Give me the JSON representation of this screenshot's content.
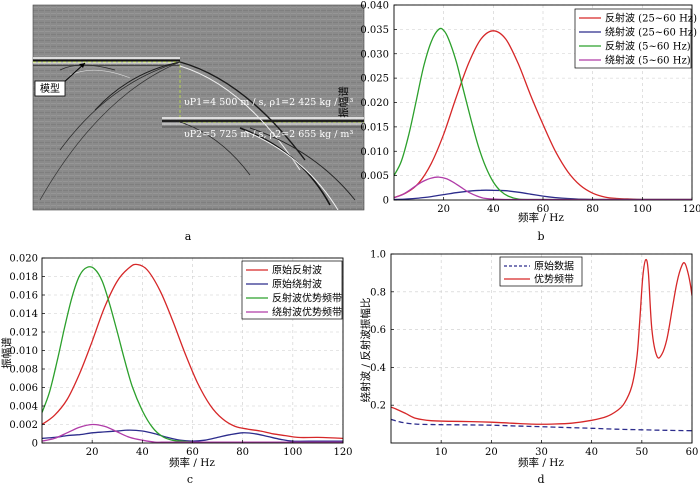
{
  "figure": {
    "panel_labels": [
      "a",
      "b",
      "c",
      "d"
    ]
  },
  "seismic": {
    "model_label": "模型",
    "upper_layer_label": "υP1=4 500 m / s, ρ1=2 425 kg / m³",
    "lower_layer_label": "υP2=5 725 m / s, ρ2=2 655 kg / m³"
  },
  "chart_data": [
    {
      "panel": "b",
      "type": "line",
      "xlabel": "频率 / Hz",
      "ylabel": "振幅谱",
      "xlim": [
        0,
        120
      ],
      "ylim": [
        0,
        0.04
      ],
      "xticks": [
        20,
        40,
        60,
        80,
        100,
        120
      ],
      "yticks": [
        0,
        0.005,
        0.01,
        0.015,
        0.02,
        0.025,
        0.03,
        0.035,
        0.04
      ],
      "ytick_labels": [
        "0",
        "0.005",
        "0.010",
        "0.015",
        "0.020",
        "0.025",
        "0.030",
        "0.035",
        "0.040"
      ],
      "grid": true,
      "legend_position": "top-right",
      "series": [
        {
          "name": "反射波 (25~60 Hz)",
          "color": "#d62728",
          "x": [
            0,
            5,
            10,
            15,
            20,
            25,
            30,
            35,
            40,
            45,
            50,
            55,
            60,
            65,
            70,
            75,
            80,
            85,
            90,
            95,
            100,
            105,
            110,
            115,
            120
          ],
          "y": [
            0.0005,
            0.0015,
            0.0035,
            0.0075,
            0.0135,
            0.021,
            0.028,
            0.033,
            0.0347,
            0.033,
            0.028,
            0.0215,
            0.0155,
            0.01,
            0.0058,
            0.003,
            0.0014,
            0.0006,
            0.0003,
            0.0002,
            0.0001,
            0.0001,
            0.0001,
            0.0001,
            0.0001
          ]
        },
        {
          "name": "绕射波 (25~60 Hz)",
          "color": "#2c2c8c",
          "x": [
            0,
            5,
            10,
            15,
            20,
            25,
            30,
            35,
            40,
            45,
            50,
            55,
            60,
            65,
            70,
            80,
            90,
            100,
            110,
            120
          ],
          "y": [
            0.0001,
            0.0002,
            0.0004,
            0.0007,
            0.0011,
            0.0015,
            0.0018,
            0.002,
            0.002,
            0.0019,
            0.0016,
            0.0012,
            0.0008,
            0.0005,
            0.0003,
            0.0001,
            0.0001,
            0.0001,
            0.0001,
            0.0001
          ]
        },
        {
          "name": "反射波 (5~60 Hz)",
          "color": "#2ca02c",
          "x": [
            0,
            3,
            6,
            9,
            12,
            15,
            18,
            20,
            22,
            25,
            28,
            31,
            34,
            37,
            40,
            43,
            46,
            50,
            55,
            60,
            70,
            80,
            100,
            120
          ],
          "y": [
            0.005,
            0.008,
            0.0135,
            0.0205,
            0.0275,
            0.0325,
            0.035,
            0.0348,
            0.033,
            0.0285,
            0.0225,
            0.0165,
            0.011,
            0.0067,
            0.0037,
            0.0018,
            0.0008,
            0.0002,
            0.0001,
            0.0001,
            0.0001,
            0.0001,
            0.0001,
            0.0001
          ]
        },
        {
          "name": "绕射波 (5~60 Hz)",
          "color": "#b03ca8",
          "x": [
            0,
            3,
            6,
            9,
            12,
            15,
            18,
            21,
            24,
            27,
            30,
            33,
            36,
            40,
            45,
            50,
            60,
            80,
            100,
            120
          ],
          "y": [
            0.0005,
            0.001,
            0.0019,
            0.003,
            0.0039,
            0.0045,
            0.0047,
            0.0044,
            0.0036,
            0.0026,
            0.0016,
            0.0009,
            0.0004,
            0.0002,
            0.0001,
            0.0001,
            0.0001,
            0.0001,
            0.0001,
            0.0001
          ]
        }
      ]
    },
    {
      "panel": "c",
      "type": "line",
      "xlabel": "频率 / Hz",
      "ylabel": "振幅谱",
      "xlim": [
        0,
        120
      ],
      "ylim": [
        0,
        0.02
      ],
      "xticks": [
        20,
        40,
        60,
        80,
        100,
        120
      ],
      "yticks": [
        0,
        0.002,
        0.004,
        0.006,
        0.008,
        0.01,
        0.012,
        0.014,
        0.016,
        0.018,
        0.02
      ],
      "ytick_labels": [
        "0",
        "0.002",
        "0.004",
        "0.006",
        "0.008",
        "0.010",
        "0.012",
        "0.014",
        "0.016",
        "0.018",
        "0.020"
      ],
      "grid": true,
      "legend_position": "top-right",
      "series": [
        {
          "name": "原始反射波",
          "color": "#d62728",
          "x": [
            0,
            5,
            10,
            15,
            20,
            25,
            30,
            35,
            38,
            42,
            47,
            52,
            57,
            62,
            67,
            72,
            77,
            82,
            87,
            92,
            97,
            102,
            110,
            120
          ],
          "y": [
            0.002,
            0.003,
            0.0047,
            0.0075,
            0.011,
            0.0147,
            0.0175,
            0.019,
            0.0193,
            0.0187,
            0.0165,
            0.0133,
            0.0097,
            0.0065,
            0.0041,
            0.0026,
            0.0018,
            0.0015,
            0.0013,
            0.001,
            0.0008,
            0.0006,
            0.0006,
            0.0005
          ]
        },
        {
          "name": "原始绕射波",
          "color": "#2c2c8c",
          "x": [
            0,
            5,
            10,
            15,
            20,
            25,
            30,
            35,
            40,
            45,
            50,
            55,
            60,
            65,
            70,
            75,
            80,
            85,
            90,
            95,
            100,
            110,
            120
          ],
          "y": [
            0.0005,
            0.0006,
            0.0008,
            0.0009,
            0.0011,
            0.0012,
            0.0013,
            0.0014,
            0.0013,
            0.001,
            0.0006,
            0.0003,
            0.0002,
            0.0003,
            0.0006,
            0.0009,
            0.0011,
            0.001,
            0.0007,
            0.0004,
            0.0002,
            0.0002,
            0.0002
          ]
        },
        {
          "name": "反射波优势频带",
          "color": "#2ca02c",
          "x": [
            0,
            3,
            6,
            9,
            12,
            15,
            18,
            21,
            24,
            27,
            30,
            33,
            36,
            40,
            44,
            48,
            52,
            56,
            60,
            70,
            80,
            100,
            120
          ],
          "y": [
            0.0033,
            0.0055,
            0.0088,
            0.0125,
            0.0158,
            0.0181,
            0.019,
            0.0188,
            0.0175,
            0.015,
            0.012,
            0.0089,
            0.0061,
            0.0035,
            0.0017,
            0.0007,
            0.0003,
            0.0002,
            0.0001,
            0.0001,
            0.0001,
            0.0001,
            0.0001
          ]
        },
        {
          "name": "绕射波优势频带",
          "color": "#b03ca8",
          "x": [
            0,
            5,
            10,
            15,
            20,
            25,
            30,
            35,
            40,
            45,
            50,
            60,
            80,
            100,
            120
          ],
          "y": [
            0.0002,
            0.0005,
            0.0011,
            0.0017,
            0.002,
            0.0018,
            0.0012,
            0.0006,
            0.0003,
            0.0001,
            0.0001,
            0.0001,
            0.0001,
            0.0001,
            0.0001
          ]
        }
      ]
    },
    {
      "panel": "d",
      "type": "line",
      "xlabel": "频率 / Hz",
      "ylabel": "绕射波 / 反射波振幅比",
      "xlim": [
        0,
        60
      ],
      "ylim": [
        0,
        1.0
      ],
      "xticks": [
        10,
        20,
        30,
        40,
        50,
        60
      ],
      "yticks": [
        0.2,
        0.4,
        0.6,
        0.8,
        1.0
      ],
      "ytick_labels": [
        "0.2",
        "0.4",
        "0.6",
        "0.8",
        "1.0"
      ],
      "grid": true,
      "legend_position": "top-center",
      "series": [
        {
          "name": "原始数据",
          "color": "#2c2c8c",
          "dashed": true,
          "x": [
            0,
            2,
            5,
            10,
            15,
            20,
            25,
            30,
            35,
            40,
            45,
            50,
            55,
            60
          ],
          "y": [
            0.125,
            0.11,
            0.1,
            0.097,
            0.096,
            0.094,
            0.09,
            0.086,
            0.082,
            0.078,
            0.073,
            0.07,
            0.067,
            0.065
          ]
        },
        {
          "name": "优势频带",
          "color": "#d62728",
          "dashed": false,
          "x": [
            0,
            1,
            3,
            5,
            8,
            12,
            16,
            20,
            24,
            28,
            32,
            36,
            40,
            43,
            45,
            46.5,
            48,
            49,
            49.6,
            50.2,
            50.8,
            51.3,
            52,
            53,
            54,
            55,
            56,
            57,
            58,
            58.6,
            59.2,
            59.6,
            60
          ],
          "y": [
            0.19,
            0.18,
            0.155,
            0.13,
            0.118,
            0.115,
            0.113,
            0.11,
            0.105,
            0.1,
            0.1,
            0.105,
            0.12,
            0.14,
            0.17,
            0.21,
            0.3,
            0.45,
            0.65,
            0.88,
            0.97,
            0.9,
            0.6,
            0.46,
            0.47,
            0.55,
            0.7,
            0.85,
            0.94,
            0.95,
            0.9,
            0.85,
            0.78
          ]
        }
      ]
    }
  ]
}
